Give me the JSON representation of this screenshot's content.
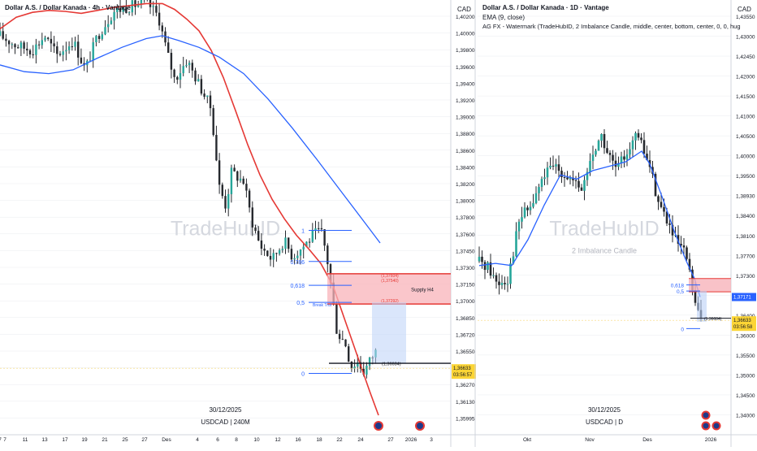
{
  "colors": {
    "bull": "#26a69a",
    "bear": "#26292e",
    "wick": "#26292e",
    "ema_red": "#e53935",
    "ema_blue": "#2962ff",
    "fib": "#2962ff",
    "zone_fill": "#f8b3ba",
    "zone_line": "#e53935",
    "price_tag": "#fcd535",
    "watermark": "#d5d8df",
    "grid": "#e9ebef"
  },
  "left_panel": {
    "title": "Dollar A.S. / Dollar Kanada · 4h · Vantage",
    "watermark": "TradeHubID",
    "date_label": "30/12/2025",
    "symbol_label": "USDCAD | 240M",
    "currency": "CAD",
    "y_ticks": [
      "1,40200",
      "1,40000",
      "1,39800",
      "1,39600",
      "1,39400",
      "1,39200",
      "1,39000",
      "1,38800",
      "1,38600",
      "1,38400",
      "1,38200",
      "1,38000",
      "1,37800",
      "1,37600",
      "1,37450",
      "1,37300",
      "1,37150",
      "1,37000",
      "1,36850",
      "1,36720",
      "1,36550",
      "1,36410",
      "1,36270",
      "1,36130",
      "1,35995"
    ],
    "x_ticks": [
      "7",
      "11",
      "13",
      "17",
      "19",
      "21",
      "25",
      "27",
      "Des",
      "4",
      "6",
      "8",
      "10",
      "12",
      "16",
      "18",
      "22",
      "24",
      "27",
      "2026",
      "3",
      "7"
    ],
    "fib_levels": [
      {
        "label": "1",
        "price": 1.3805
      },
      {
        "label": "0,786",
        "price": 1.3773
      },
      {
        "label": "0,618",
        "price": 1.37485
      },
      {
        "label": "0,5",
        "price": 1.3731
      },
      {
        "label": "0",
        "price": 1.3658
      }
    ],
    "zone": {
      "label": "Supply H4",
      "top": 1.37604,
      "bottom": 1.37293,
      "top_label": "(1,37604)",
      "mid_label": "(1,37540)",
      "low_label": "(1,37292)",
      "break_label": "Break Trut"
    },
    "level_line": {
      "price": 1.36684,
      "label": "(1,36684)"
    },
    "price_tags": [
      {
        "text": "1,36633",
        "price": 1.36633
      },
      {
        "text": "03:56:57",
        "price": 1.36598
      }
    ],
    "price_tag_mid": "1,36633"
  },
  "right_panel": {
    "title": "Dollar A.S. / Dollar Kanada · 1D · Vantage",
    "ema_label": "EMA (9, close)",
    "indicator_label": "AG FX - Watermark (TradeHubID, 2 Imbalance Candle, middle, center, bottom, center, 0, 0, hug",
    "watermark": "TradeHubID",
    "sub_watermark": "2 Imbalance Candle",
    "date_label": "30/12/2025",
    "symbol_label": "USDCAD | D",
    "currency": "CAD",
    "y_ticks": [
      "1,43550",
      "1,43000",
      "1,42450",
      "1,42000",
      "1,41500",
      "1,41000",
      "1,40500",
      "1,40000",
      "1,39500",
      "1,38930",
      "1,38400",
      "1,38100",
      "1,37700",
      "1,37300",
      "1,37000",
      "1,36400",
      "1,36000",
      "1,35500",
      "1,35000",
      "1,34500",
      "1,34000"
    ],
    "x_ticks": [
      "Okt",
      "Nov",
      "Des",
      "2026"
    ],
    "fib_levels": [
      {
        "label": "0,618",
        "price": 1.3745
      },
      {
        "label": "0,5",
        "price": 1.3731
      },
      {
        "label": "0",
        "price": 1.3644
      }
    ],
    "level_line": {
      "label": "(1,36684)"
    },
    "price_tags": [
      {
        "text": "1,37171",
        "color": "#2962ff"
      },
      {
        "text": "1,36633",
        "color": "#fcd535"
      },
      {
        "text": "03:56:58",
        "color": "#fcd535"
      }
    ]
  },
  "chart_data": [
    {
      "type": "candlestick",
      "title": "Dollar A.S. / Dollar Kanada · 4h · Vantage",
      "symbol": "USDCAD",
      "timeframe": "240M",
      "ylim": [
        1.3595,
        1.4035
      ],
      "ema_series": [
        {
          "color": "red",
          "points": [
            [
              0,
              1.4012
            ],
            [
              20,
              1.4024
            ],
            [
              40,
              1.4029
            ],
            [
              60,
              1.4031
            ],
            [
              80,
              1.403
            ],
            [
              100,
              1.4028
            ],
            [
              120,
              1.4031
            ],
            [
              140,
              1.4034
            ],
            [
              160,
              1.4036
            ],
            [
              180,
              1.4038
            ],
            [
              200,
              1.4038
            ],
            [
              215,
              1.4032
            ],
            [
              230,
              1.4022
            ],
            [
              245,
              1.401
            ],
            [
              260,
              1.399
            ],
            [
              275,
              1.3962
            ],
            [
              290,
              1.3928
            ],
            [
              305,
              1.3893
            ],
            [
              320,
              1.3862
            ],
            [
              335,
              1.3837
            ],
            [
              350,
              1.3817
            ],
            [
              365,
              1.38
            ],
            [
              380,
              1.3786
            ],
            [
              395,
              1.3771
            ],
            [
              410,
              1.3748
            ],
            [
              425,
              1.3712
            ],
            [
              440,
              1.3676
            ],
            [
              455,
              1.364
            ],
            [
              466,
              1.3615
            ]
          ]
        },
        {
          "color": "blue",
          "points": [
            [
              0,
              1.3975
            ],
            [
              30,
              1.3968
            ],
            [
              60,
              1.3966
            ],
            [
              90,
              1.397
            ],
            [
              120,
              1.3982
            ],
            [
              150,
              1.3993
            ],
            [
              180,
              1.4002
            ],
            [
              200,
              1.4005
            ],
            [
              220,
              1.4
            ],
            [
              245,
              1.3993
            ],
            [
              270,
              1.3983
            ],
            [
              300,
              1.3966
            ],
            [
              330,
              1.394
            ],
            [
              360,
              1.391
            ],
            [
              390,
              1.3878
            ],
            [
              420,
              1.3845
            ],
            [
              450,
              1.3812
            ],
            [
              468,
              1.3792
            ]
          ]
        }
      ],
      "candle_path": [
        [
          0,
          1.4005
        ],
        [
          20,
          1.3995
        ],
        [
          40,
          1.399
        ],
        [
          55,
          1.4005
        ],
        [
          70,
          1.3985
        ],
        [
          90,
          1.4
        ],
        [
          105,
          1.397
        ],
        [
          120,
          1.4005
        ],
        [
          140,
          1.403
        ],
        [
          160,
          1.4035
        ],
        [
          180,
          1.404
        ],
        [
          195,
          1.4025
        ],
        [
          205,
          1.399
        ],
        [
          215,
          1.396
        ],
        [
          230,
          1.398
        ],
        [
          245,
          1.3955
        ],
        [
          260,
          1.393
        ],
        [
          270,
          1.385
        ],
        [
          278,
          1.383
        ],
        [
          285,
          1.3865
        ],
        [
          300,
          1.3855
        ],
        [
          310,
          1.3815
        ],
        [
          320,
          1.379
        ],
        [
          335,
          1.3775
        ],
        [
          350,
          1.3795
        ],
        [
          360,
          1.3778
        ],
        [
          375,
          1.379
        ],
        [
          385,
          1.38
        ],
        [
          395,
          1.3805
        ],
        [
          402,
          1.378
        ],
        [
          408,
          1.3745
        ],
        [
          415,
          1.37
        ],
        [
          425,
          1.369
        ],
        [
          432,
          1.3665
        ],
        [
          440,
          1.367
        ],
        [
          448,
          1.366
        ],
        [
          458,
          1.3675
        ],
        [
          466,
          1.3685
        ]
      ]
    },
    {
      "type": "candlestick",
      "title": "Dollar A.S. / Dollar Kanada · 1D · Vantage",
      "symbol": "USDCAD",
      "timeframe": "D",
      "ylim": [
        1.3398,
        1.439
      ],
      "ema_series": [
        {
          "color": "blue",
          "name": "EMA (9, close)",
          "points": [
            [
              590,
              1.379
            ],
            [
              610,
              1.3795
            ],
            [
              630,
              1.379
            ],
            [
              650,
              1.385
            ],
            [
              670,
              1.393
            ],
            [
              690,
              1.4
            ],
            [
              710,
              1.399
            ],
            [
              730,
              1.401
            ],
            [
              750,
              1.402
            ],
            [
              770,
              1.403
            ],
            [
              790,
              1.4055
            ],
            [
              800,
              1.4025
            ],
            [
              815,
              1.395
            ],
            [
              830,
              1.387
            ],
            [
              845,
              1.38
            ],
            [
              855,
              1.376
            ],
            [
              862,
              1.3717
            ]
          ]
        }
      ],
      "candle_path": [
        [
          590,
          1.38
        ],
        [
          600,
          1.379
        ],
        [
          612,
          1.375
        ],
        [
          625,
          1.376
        ],
        [
          640,
          1.39
        ],
        [
          655,
          1.393
        ],
        [
          670,
          1.4
        ],
        [
          685,
          1.402
        ],
        [
          700,
          1.3995
        ],
        [
          715,
          1.396
        ],
        [
          730,
          1.405
        ],
        [
          740,
          1.409
        ],
        [
          750,
          1.404
        ],
        [
          760,
          1.401
        ],
        [
          775,
          1.407
        ],
        [
          785,
          1.409
        ],
        [
          800,
          1.402
        ],
        [
          810,
          1.394
        ],
        [
          820,
          1.39
        ],
        [
          830,
          1.385
        ],
        [
          845,
          1.381
        ],
        [
          852,
          1.374
        ],
        [
          858,
          1.368
        ],
        [
          864,
          1.3663
        ]
      ]
    }
  ]
}
